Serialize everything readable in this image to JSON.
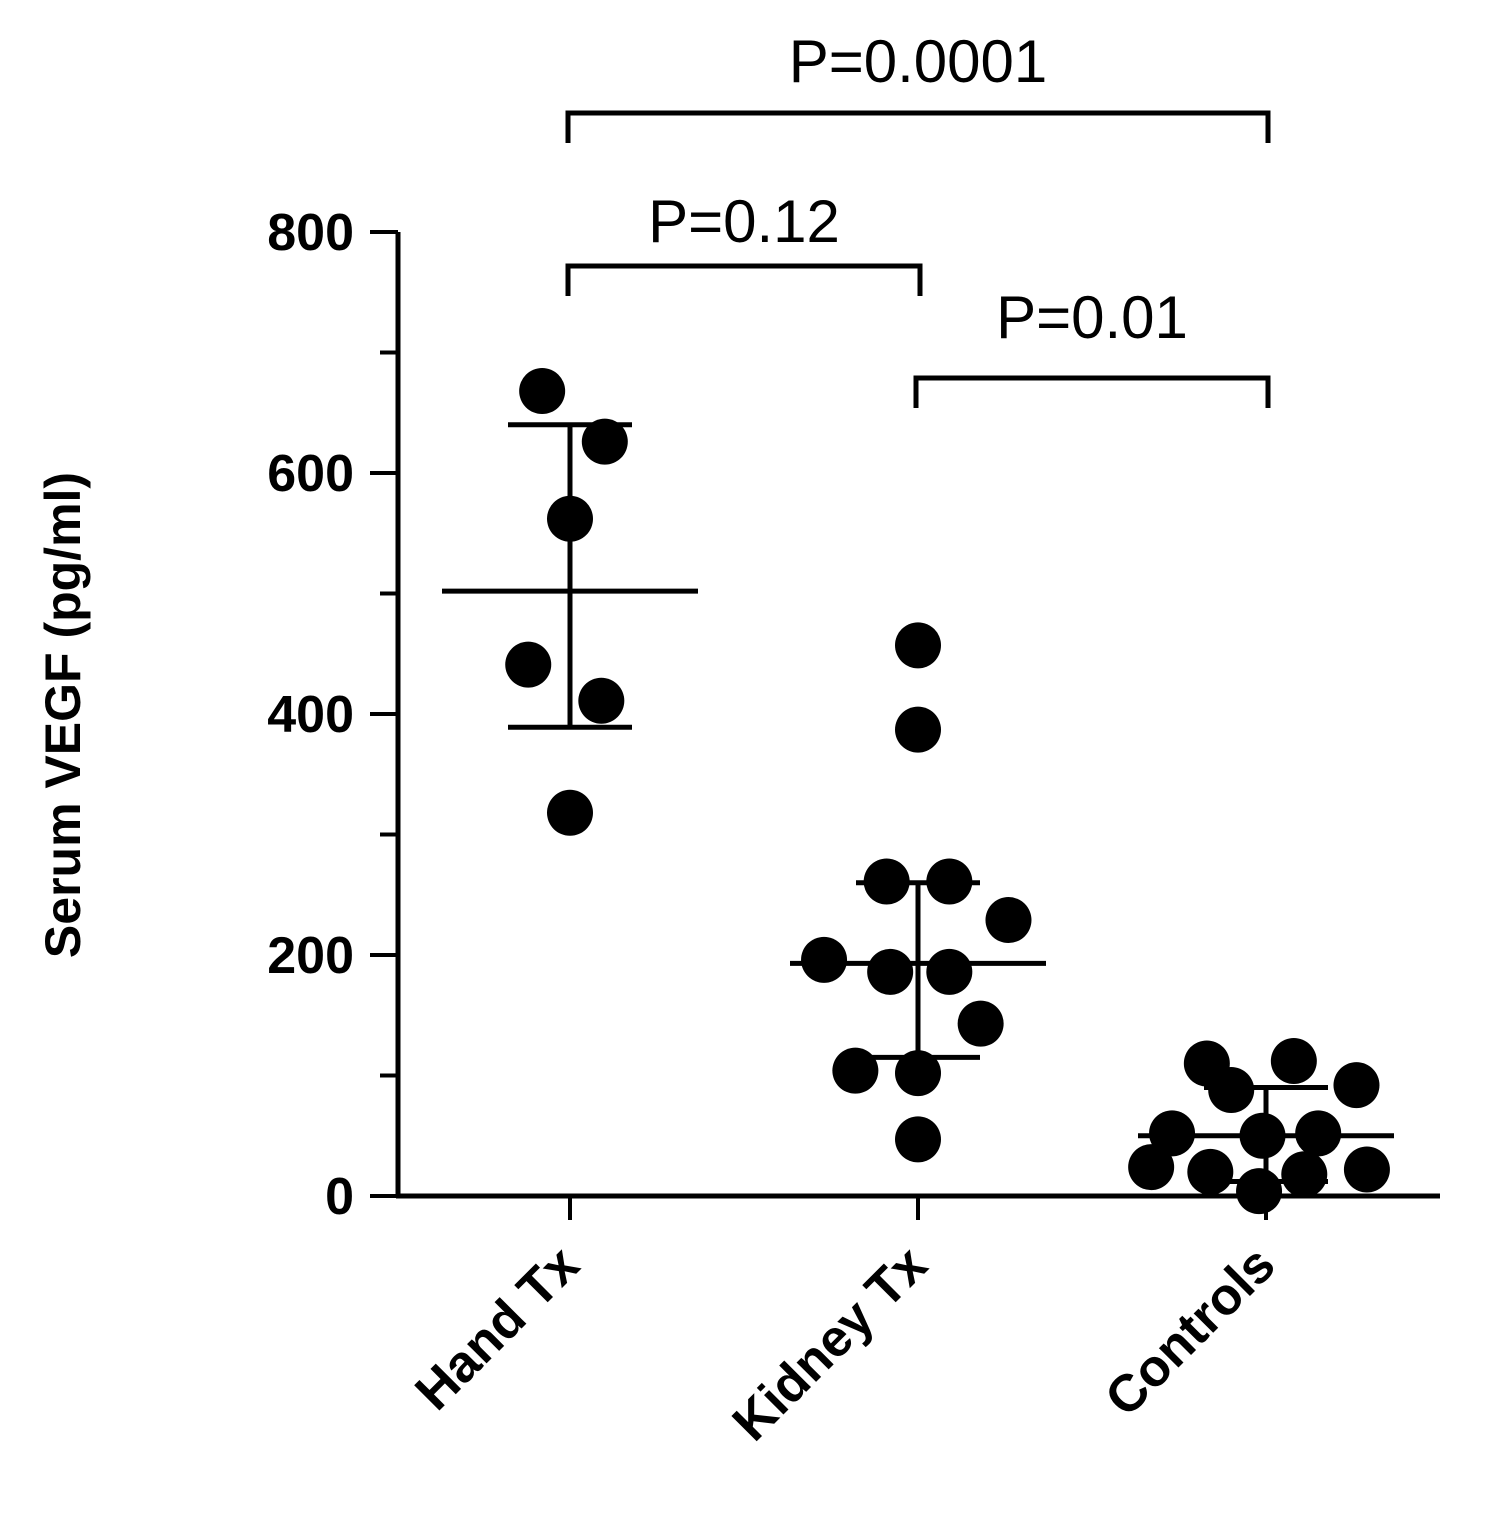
{
  "chart_data": {
    "type": "scatter",
    "ylabel": "Serum VEGF (pg/ml)",
    "ylim": [
      0,
      800
    ],
    "yticks": [
      0,
      200,
      400,
      600,
      800
    ],
    "yminor_ticks": [
      100,
      300,
      500,
      700
    ],
    "categories": [
      "Hand Tx",
      "Kidney Tx",
      "Controls"
    ],
    "groups": [
      {
        "category": "Hand Tx",
        "mean": 502,
        "sd_low": 389,
        "sd_high": 640,
        "points": [
          {
            "offset": -0.08,
            "y": 668
          },
          {
            "offset": 0.1,
            "y": 626
          },
          {
            "offset": 0.0,
            "y": 562
          },
          {
            "offset": -0.12,
            "y": 441
          },
          {
            "offset": 0.09,
            "y": 411
          },
          {
            "offset": 0.0,
            "y": 318
          }
        ]
      },
      {
        "category": "Kidney Tx",
        "mean": 193,
        "sd_low": 115,
        "sd_high": 260,
        "points": [
          {
            "offset": 0.0,
            "y": 457
          },
          {
            "offset": 0.0,
            "y": 387
          },
          {
            "offset": -0.09,
            "y": 261
          },
          {
            "offset": 0.09,
            "y": 261
          },
          {
            "offset": 0.26,
            "y": 229
          },
          {
            "offset": -0.27,
            "y": 196
          },
          {
            "offset": -0.08,
            "y": 186
          },
          {
            "offset": 0.09,
            "y": 186
          },
          {
            "offset": 0.18,
            "y": 143
          },
          {
            "offset": -0.18,
            "y": 104
          },
          {
            "offset": 0.0,
            "y": 102
          },
          {
            "offset": 0.0,
            "y": 47
          }
        ]
      },
      {
        "category": "Controls",
        "mean": 50,
        "sd_low": 12,
        "sd_high": 90,
        "points": [
          {
            "offset": -0.17,
            "y": 110
          },
          {
            "offset": 0.08,
            "y": 112
          },
          {
            "offset": 0.26,
            "y": 92
          },
          {
            "offset": -0.1,
            "y": 88
          },
          {
            "offset": -0.27,
            "y": 52
          },
          {
            "offset": -0.01,
            "y": 50
          },
          {
            "offset": 0.15,
            "y": 52
          },
          {
            "offset": -0.33,
            "y": 24
          },
          {
            "offset": -0.16,
            "y": 20
          },
          {
            "offset": 0.11,
            "y": 18
          },
          {
            "offset": 0.29,
            "y": 22
          },
          {
            "offset": -0.02,
            "y": 4
          }
        ]
      }
    ],
    "comparisons": [
      {
        "from": "Hand Tx",
        "to": "Kidney Tx",
        "label": "P=0.12"
      },
      {
        "from": "Kidney Tx",
        "to": "Controls",
        "label": "P=0.01"
      },
      {
        "from": "Hand Tx",
        "to": "Controls",
        "label": "P=0.0001"
      }
    ]
  }
}
